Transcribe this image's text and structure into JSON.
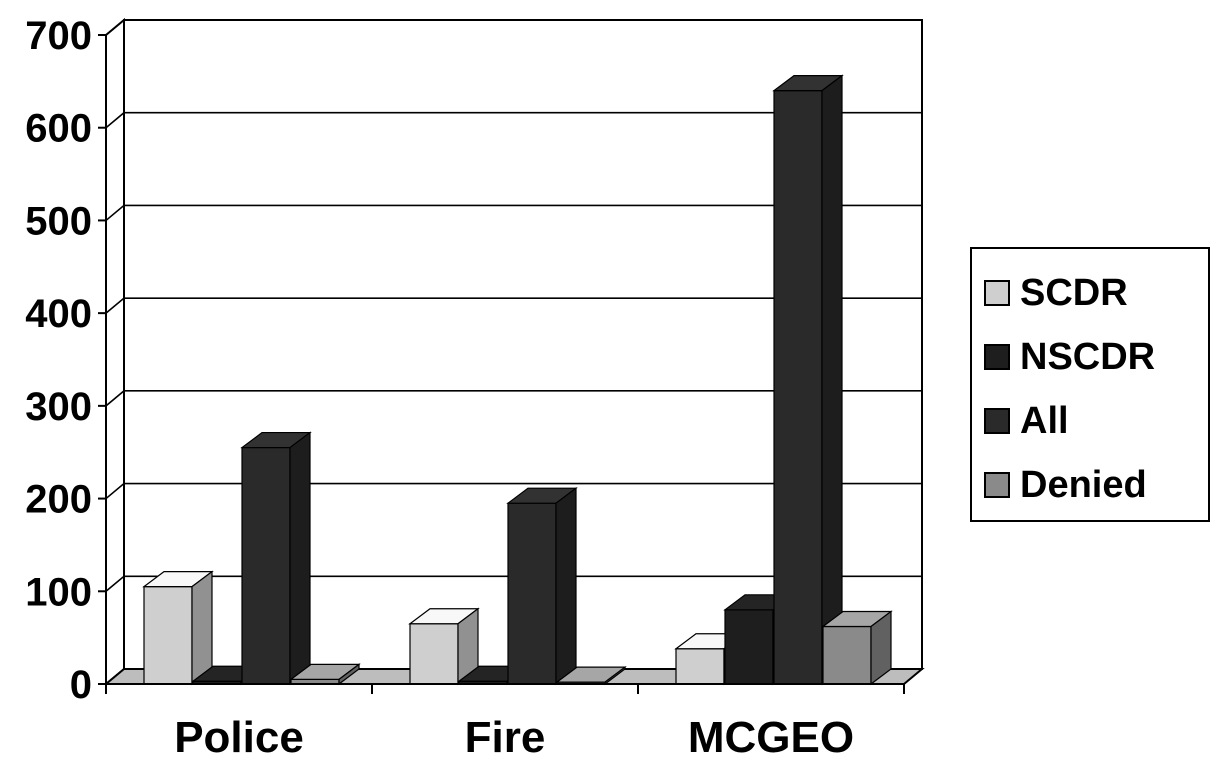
{
  "chart_data": {
    "type": "bar",
    "categories": [
      "Police",
      "Fire",
      "MCGEO"
    ],
    "series": [
      {
        "name": "SCDR",
        "values": [
          105,
          65,
          38
        ],
        "color": "#cfcfcf"
      },
      {
        "name": "NSCDR",
        "values": [
          3,
          3,
          80
        ],
        "color": "#1e1e1e"
      },
      {
        "name": "All",
        "values": [
          255,
          195,
          640
        ],
        "color": "#2a2a2a"
      },
      {
        "name": "Denied",
        "values": [
          5,
          2,
          62
        ],
        "color": "#8a8a8a"
      }
    ],
    "yticks": [
      "0",
      "100",
      "200",
      "300",
      "400",
      "500",
      "600",
      "700"
    ],
    "ylim": [
      0,
      700
    ],
    "grid": true,
    "legend_position": "right",
    "style": "3d-clustered-column"
  }
}
